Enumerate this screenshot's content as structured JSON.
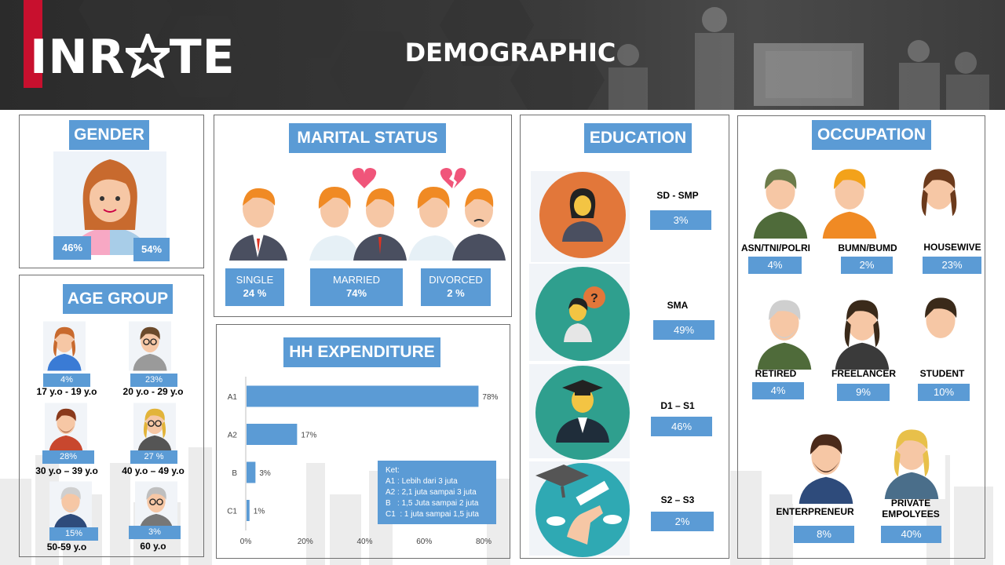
{
  "header": {
    "logo": "INRATE",
    "title": "DEMOGRAPHIC"
  },
  "gender": {
    "title": "GENDER",
    "female_pct": "46%",
    "male_pct": "54%"
  },
  "age_group": {
    "title": "AGE GROUP",
    "items": [
      {
        "pct": "4%",
        "label": "17 y.o - 19 y.o"
      },
      {
        "pct": "23%",
        "label": "20 y.o - 29 y.o"
      },
      {
        "pct": "28%",
        "label": "30 y.o – 39 y.o"
      },
      {
        "pct": "27 %",
        "label": "40 y.o – 49 y.o"
      },
      {
        "pct": "15%",
        "label": "50-59 y.o"
      },
      {
        "pct": "3%",
        "label": "60 y.o"
      }
    ]
  },
  "marital_status": {
    "title": "MARITAL STATUS",
    "items": [
      {
        "label": "SINGLE",
        "pct": "24 %"
      },
      {
        "label": "MARRIED",
        "pct": "74%"
      },
      {
        "label": "DIVORCED",
        "pct": "2 %"
      }
    ]
  },
  "hh_expenditure": {
    "title": "HH EXPENDITURE",
    "legend_title": "Ket:",
    "legend": [
      "A1 : Lebih dari 3 juta",
      "A2 : 2,1 juta sampai 3 juta",
      "B   : 1,5 Juta sampai 2 juta",
      "C1  : 1 juta sampai 1,5 juta"
    ]
  },
  "chart_data": {
    "type": "bar",
    "orientation": "horizontal",
    "categories": [
      "A1",
      "A2",
      "B",
      "C1"
    ],
    "values": [
      78,
      17,
      3,
      1
    ],
    "value_labels": [
      "78%",
      "17%",
      "3%",
      "1%"
    ],
    "xlim": [
      0,
      80
    ],
    "xticks": [
      "0%",
      "20%",
      "40%",
      "60%",
      "80%"
    ],
    "color": "#5b9bd5"
  },
  "education": {
    "title": "EDUCATION",
    "items": [
      {
        "label": "SD - SMP",
        "pct": "3%"
      },
      {
        "label": "SMA",
        "pct": "49%"
      },
      {
        "label": "D1 – S1",
        "pct": "46%"
      },
      {
        "label": "S2 – S3",
        "pct": "2%"
      }
    ]
  },
  "occupation": {
    "title": "OCCUPATION",
    "items": [
      {
        "label": "ASN/TNI/POLRI",
        "pct": "4%"
      },
      {
        "label": "BUMN/BUMD",
        "pct": "2%"
      },
      {
        "label": "HOUSEWIVE",
        "pct": "23%"
      },
      {
        "label": "RETIRED",
        "pct": "4%"
      },
      {
        "label": "FREELANCER",
        "pct": "9%"
      },
      {
        "label": "STUDENT",
        "pct": "10%"
      },
      {
        "label": "ENTERPRENEUR",
        "pct": "8%"
      },
      {
        "label": "PRIVATE EMPOLYEES",
        "pct": "40%"
      }
    ]
  },
  "colors": {
    "accent": "#5b9bd5",
    "logo_red": "#c8102e"
  }
}
